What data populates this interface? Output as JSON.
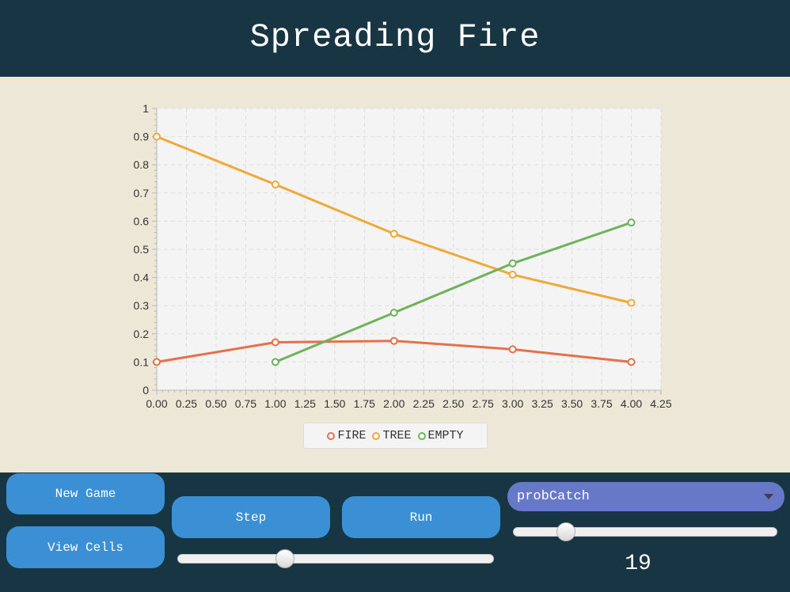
{
  "header": {
    "title": "Spreading Fire"
  },
  "colors": {
    "header_bg": "#173542",
    "content_bg": "#ece7d7",
    "button": "#3b8fd4",
    "dropdown": "#6878c8",
    "fire": "#e5704a",
    "tree": "#f0a838",
    "empty": "#6db35a"
  },
  "chart_data": {
    "type": "line",
    "title": "",
    "xlabel": "",
    "ylabel": "",
    "xlim": [
      0,
      4.25
    ],
    "ylim": [
      0,
      1
    ],
    "grid": true,
    "legend_position": "bottom",
    "x_ticks": [
      "0.00",
      "0.25",
      "0.50",
      "0.75",
      "1.00",
      "1.25",
      "1.50",
      "1.75",
      "2.00",
      "2.25",
      "2.50",
      "2.75",
      "3.00",
      "3.25",
      "3.50",
      "3.75",
      "4.00",
      "4.25"
    ],
    "y_ticks": [
      "0",
      "0.1",
      "0.2",
      "0.3",
      "0.4",
      "0.5",
      "0.6",
      "0.7",
      "0.8",
      "0.9",
      "1"
    ],
    "series": [
      {
        "name": "FIRE",
        "color": "#e5704a",
        "x": [
          0,
          1,
          2,
          3,
          4
        ],
        "y": [
          0.1,
          0.17,
          0.175,
          0.145,
          0.1
        ]
      },
      {
        "name": "TREE",
        "color": "#f0a838",
        "x": [
          0,
          1,
          2,
          3,
          4
        ],
        "y": [
          0.9,
          0.73,
          0.555,
          0.41,
          0.31
        ]
      },
      {
        "name": "EMPTY",
        "color": "#6db35a",
        "x": [
          1,
          2,
          3,
          4
        ],
        "y": [
          0.1,
          0.275,
          0.45,
          0.595
        ]
      }
    ]
  },
  "controls": {
    "new_game_label": "New Game",
    "view_cells_label": "View Cells",
    "step_label": "Step",
    "run_label": "Run",
    "speed_slider_value": 0.34,
    "param_dropdown_value": "probCatch",
    "param_slider_value": 0.2,
    "param_readout": "19"
  }
}
